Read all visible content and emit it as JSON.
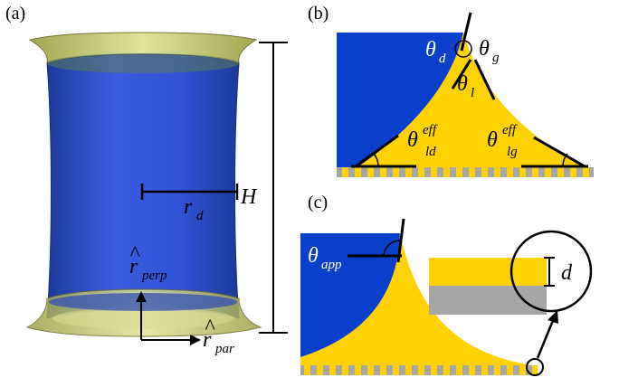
{
  "panels": {
    "a": {
      "label": "(a)",
      "height_symbol": "H",
      "radius_symbol": "r",
      "radius_subscript": "d",
      "perp_hat": "^",
      "perp_symbol": "r",
      "perp_subscript": "perp",
      "par_hat": "^",
      "par_symbol": "r",
      "par_subscript": "par"
    },
    "b": {
      "label": "(b)",
      "theta_d_symbol": "θ",
      "theta_d_subscript": "d",
      "theta_g_symbol": "θ",
      "theta_g_subscript": "g",
      "theta_l_symbol": "θ",
      "theta_l_subscript": "l",
      "theta_ld_symbol": "θ",
      "theta_ld_superscript": "eff",
      "theta_ld_subscript": "ld",
      "theta_lg_symbol": "θ",
      "theta_lg_superscript": "eff",
      "theta_lg_subscript": "lg"
    },
    "c": {
      "label": "(c)",
      "theta_app_symbol": "θ",
      "theta_app_subscript": "app",
      "thickness_symbol": "d"
    }
  },
  "colors": {
    "droplet_blue": "#0a3fcc",
    "liquid_yellow": "#ffd200",
    "substrate_gray": "#a6a6a6",
    "membrane_olive": "#c8cc6e",
    "outline_black": "#000000"
  }
}
